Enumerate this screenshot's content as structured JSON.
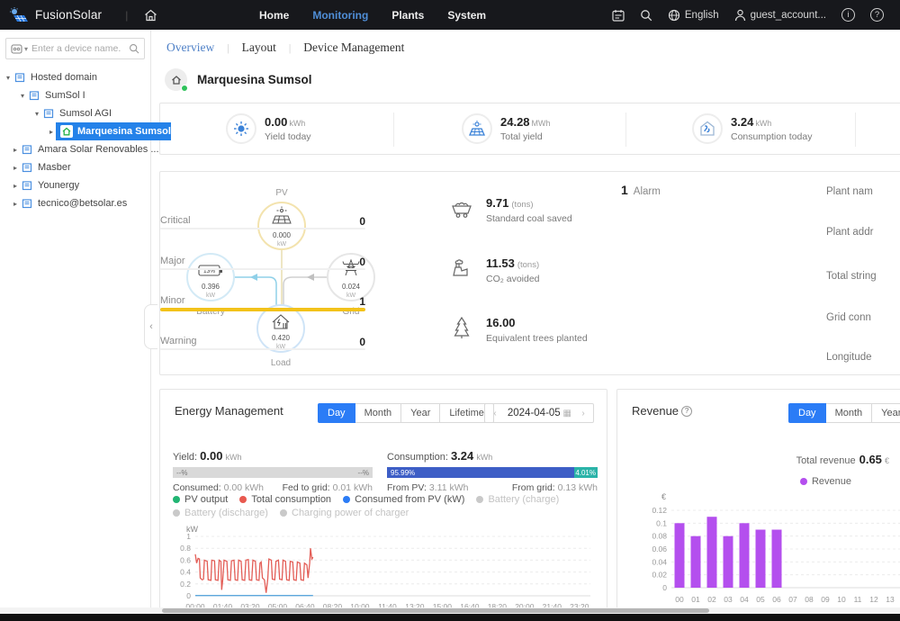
{
  "topnav": {
    "brand": "FusionSolar",
    "menu": [
      {
        "label": "Home",
        "active": false
      },
      {
        "label": "Monitoring",
        "active": true
      },
      {
        "label": "Plants",
        "active": false
      },
      {
        "label": "System",
        "active": false
      }
    ],
    "language": "English",
    "account": "guest_account...",
    "info_glyph": "i",
    "help_glyph": "?"
  },
  "sidebar": {
    "search_placeholder": "Enter a device name.",
    "tree": [
      {
        "label": "Hosted domain"
      },
      {
        "label": "SumSol I"
      },
      {
        "label": "Sumsol AGI"
      },
      {
        "label": "Marquesina Sumsol"
      },
      {
        "label": "Amara Solar Renovables ..."
      },
      {
        "label": "Masber"
      },
      {
        "label": "Younergy"
      },
      {
        "label": "tecnico@betsolar.es"
      }
    ]
  },
  "page_tabs": [
    {
      "label": "Overview",
      "active": true
    },
    {
      "label": "Layout",
      "active": false
    },
    {
      "label": "Device Management",
      "active": false
    }
  ],
  "plant": {
    "name": "Marquesina Sumsol"
  },
  "kpis": [
    {
      "value": "0.00",
      "unit": "kWh",
      "label": "Yield today"
    },
    {
      "value": "24.28",
      "unit": "MWh",
      "label": "Total yield"
    },
    {
      "value": "3.24",
      "unit": "kWh",
      "label": "Consumption today"
    }
  ],
  "flow": {
    "pv": {
      "label": "PV",
      "value": "0.000",
      "unit": "kW"
    },
    "battery": {
      "label": "Battery",
      "value": "0.396",
      "unit": "kW",
      "soc": "13%"
    },
    "grid": {
      "label": "Grid",
      "value": "0.024",
      "unit": "kW"
    },
    "load": {
      "label": "Load",
      "value": "0.420",
      "unit": "kW"
    }
  },
  "environment": [
    {
      "value": "9.71",
      "unit": "(tons)",
      "label": "Standard coal saved"
    },
    {
      "value": "11.53",
      "unit": "(tons)",
      "label": "CO₂ avoided"
    },
    {
      "value": "16.00",
      "unit": "",
      "label": "Equivalent trees planted"
    }
  ],
  "alarms": {
    "total": "1",
    "title": "Alarm",
    "rows": [
      {
        "label": "Critical",
        "count": "0",
        "severity": "normal"
      },
      {
        "label": "Major",
        "count": "0",
        "severity": "normal"
      },
      {
        "label": "Minor",
        "count": "1",
        "severity": "minor"
      },
      {
        "label": "Warning",
        "count": "0",
        "severity": "normal"
      }
    ]
  },
  "plant_info": {
    "labels": [
      "Plant nam",
      "Plant addr",
      "Total string",
      "Grid conn",
      "Longitude"
    ]
  },
  "energy": {
    "title": "Energy Management",
    "tabs": [
      "Day",
      "Month",
      "Year",
      "Lifetime"
    ],
    "active_tab": "Day",
    "date": "2024-04-05",
    "yield": {
      "label": "Yield:",
      "value": "0.00",
      "unit": "kWh",
      "left_pct": "--%",
      "right_pct": "--%",
      "consumed_label": "Consumed:",
      "consumed_value": "0.00",
      "consumed_unit": "kWh",
      "fed_label": "Fed to grid:",
      "fed_value": "0.01",
      "fed_unit": "kWh"
    },
    "consumption": {
      "label": "Consumption:",
      "value": "3.24",
      "unit": "kWh",
      "pv_pct": "95.99%",
      "grid_pct": "4.01%",
      "from_pv_label": "From PV:",
      "from_pv_value": "3.11",
      "from_pv_unit": "kWh",
      "from_grid_label": "From grid:",
      "from_grid_value": "0.13",
      "from_grid_unit": "kWh"
    }
  },
  "revenue": {
    "title": "Revenue",
    "tabs": [
      "Day",
      "Month",
      "Year"
    ],
    "active_tab": "Day",
    "total_label": "Total revenue",
    "total_value": "0.65",
    "currency": "€",
    "legend": "Revenue"
  },
  "chart_data": [
    {
      "type": "line",
      "title": "Energy Management",
      "ylabel": "kW",
      "xlabel": "",
      "ylim": [
        0,
        1
      ],
      "y_ticks": [
        0,
        0.2,
        0.4,
        0.6,
        0.8,
        1
      ],
      "x_ticks": [
        "00:00",
        "01:40",
        "03:20",
        "05:00",
        "06:40",
        "08:20",
        "10:00",
        "11:40",
        "13:20",
        "15:00",
        "16:40",
        "18:20",
        "20:00",
        "21:40",
        "23:20"
      ],
      "x_tick_minutes": 100,
      "x_range_hours": [
        0,
        24
      ],
      "grid": true,
      "legend": [
        {
          "label": "PV output",
          "color": "#21b573",
          "enabled": true
        },
        {
          "label": "Total consumption",
          "color": "#e8594f",
          "enabled": true
        },
        {
          "label": "Consumed from PV (kW)",
          "color": "#2b7cf6",
          "enabled": true
        },
        {
          "label": "Battery (charge)",
          "color": "#c9c9c9",
          "enabled": false
        },
        {
          "label": "Battery (discharge)",
          "color": "#c9c9c9",
          "enabled": false
        },
        {
          "label": "Charging power of charger",
          "color": "#c9c9c9",
          "enabled": false
        }
      ],
      "series": [
        {
          "name": "Total consumption",
          "color": "#e35d56",
          "points": [
            [
              0,
              0.7
            ],
            [
              0.08,
              0.55
            ],
            [
              0.17,
              0.63
            ],
            [
              0.25,
              0.62
            ],
            [
              0.3,
              0.3
            ],
            [
              0.42,
              0.27
            ],
            [
              0.5,
              0.28
            ],
            [
              0.55,
              0.6
            ],
            [
              0.72,
              0.58
            ],
            [
              0.78,
              0.27
            ],
            [
              0.95,
              0.26
            ],
            [
              1.0,
              0.6
            ],
            [
              1.17,
              0.59
            ],
            [
              1.22,
              0.27
            ],
            [
              1.38,
              0.26
            ],
            [
              1.45,
              0.6
            ],
            [
              1.55,
              0.58
            ],
            [
              1.6,
              0.1
            ],
            [
              1.67,
              0.27
            ],
            [
              1.75,
              0.6
            ],
            [
              1.92,
              0.58
            ],
            [
              1.98,
              0.27
            ],
            [
              2.13,
              0.26
            ],
            [
              2.2,
              0.59
            ],
            [
              2.35,
              0.6
            ],
            [
              2.42,
              0.27
            ],
            [
              2.57,
              0.26
            ],
            [
              2.63,
              0.6
            ],
            [
              2.78,
              0.58
            ],
            [
              2.85,
              0.27
            ],
            [
              3.0,
              0.26
            ],
            [
              3.07,
              0.6
            ],
            [
              3.22,
              0.61
            ],
            [
              3.28,
              0.27
            ],
            [
              3.43,
              0.26
            ],
            [
              3.5,
              0.6
            ],
            [
              3.65,
              0.58
            ],
            [
              3.72,
              0.27
            ],
            [
              3.87,
              0.26
            ],
            [
              3.93,
              0.55
            ],
            [
              4.0,
              0.57
            ],
            [
              4.08,
              0.3
            ],
            [
              4.2,
              0.27
            ],
            [
              4.3,
              0.05
            ],
            [
              4.4,
              0.28
            ],
            [
              4.47,
              0.62
            ],
            [
              4.62,
              0.6
            ],
            [
              4.68,
              0.28
            ],
            [
              4.83,
              0.27
            ],
            [
              4.9,
              0.58
            ],
            [
              5.05,
              0.6
            ],
            [
              5.12,
              0.28
            ],
            [
              5.27,
              0.27
            ],
            [
              5.33,
              0.6
            ],
            [
              5.48,
              0.58
            ],
            [
              5.55,
              0.27
            ],
            [
              5.7,
              0.26
            ],
            [
              5.77,
              0.58
            ],
            [
              5.92,
              0.57
            ],
            [
              5.98,
              0.27
            ],
            [
              6.13,
              0.26
            ],
            [
              6.2,
              0.57
            ],
            [
              6.35,
              0.55
            ],
            [
              6.42,
              0.27
            ],
            [
              6.57,
              0.26
            ],
            [
              6.63,
              0.55
            ],
            [
              6.78,
              0.52
            ],
            [
              6.85,
              0.3
            ],
            [
              6.95,
              0.55
            ],
            [
              7.0,
              0.8
            ],
            [
              7.08,
              0.62
            ],
            [
              7.15,
              0.65
            ]
          ]
        },
        {
          "name": "Consumed from PV (kW)",
          "color": "#5ca8dd",
          "points": [
            [
              0,
              0.004
            ],
            [
              7.15,
              0.004
            ]
          ]
        }
      ]
    },
    {
      "type": "bar",
      "title": "Revenue",
      "ylabel": "€",
      "xlabel": "",
      "categories": [
        "00",
        "01",
        "02",
        "03",
        "04",
        "05",
        "06",
        "07",
        "08",
        "09",
        "10",
        "11",
        "12",
        "13"
      ],
      "values": [
        0.1,
        0.08,
        0.11,
        0.08,
        0.1,
        0.09,
        0.09,
        0,
        0,
        0,
        0,
        0,
        0,
        0
      ],
      "bar_color": "#b44fee",
      "ylim": [
        0,
        0.12
      ],
      "y_ticks": [
        0,
        0.02,
        0.04,
        0.06,
        0.08,
        0.1,
        0.12
      ],
      "grid": true,
      "legend": [
        "Revenue"
      ],
      "total_revenue": "0.65 €"
    }
  ],
  "colors": {
    "accent": "#2b7cf6",
    "minor_bar": "#f2c21a",
    "consumption_pv": "#3d5ec6",
    "consumption_grid": "#2ab3a8",
    "revenue_bar": "#b44fee",
    "selected_tree": "#2482e9",
    "online_dot": "#2fc25b"
  }
}
